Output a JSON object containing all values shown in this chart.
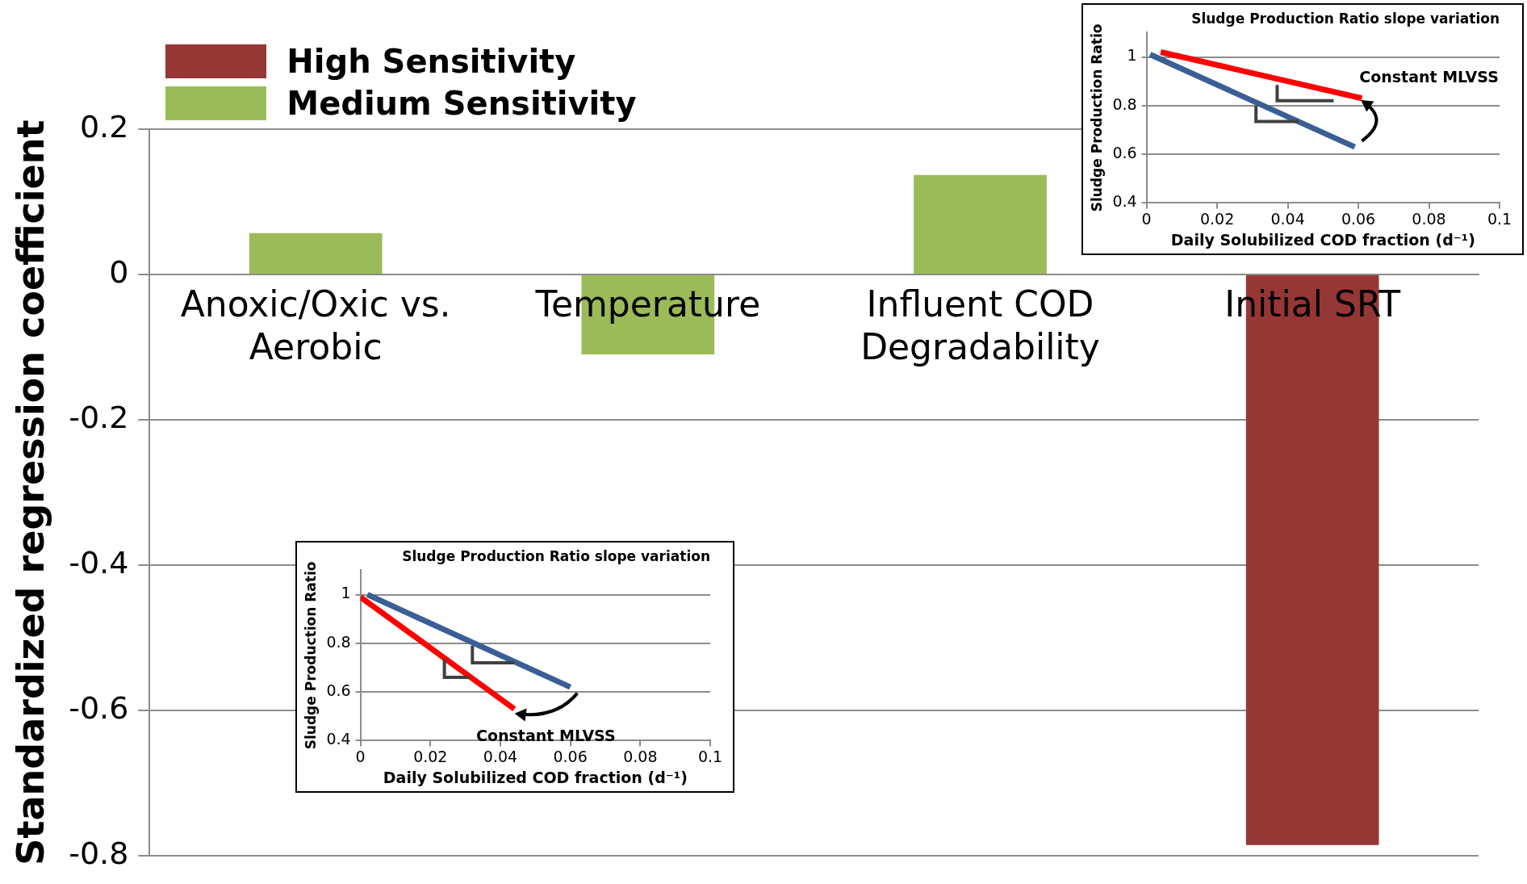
{
  "chart_data": [
    {
      "type": "bar",
      "ylabel": "Standardized regression coefficient",
      "categories": [
        "Anoxic/Oxic vs. Aerobic",
        "Temperature",
        "Influent COD Degradability",
        "Initial SRT"
      ],
      "series": [
        {
          "name": "High Sensitivity",
          "color": "#953735",
          "values": [
            null,
            null,
            null,
            -0.785
          ]
        },
        {
          "name": "Medium Sensitivity",
          "color": "#9bbb59",
          "values": [
            0.057,
            -0.11,
            0.137,
            null
          ]
        }
      ],
      "ylim": [
        -0.8,
        0.2
      ],
      "yticks": [
        -0.8,
        -0.6,
        -0.4,
        -0.2,
        0,
        0.2
      ],
      "grid": "y",
      "legend": "top left"
    },
    {
      "type": "line",
      "title": "Sludge Production Ratio slope variation",
      "xlabel": "Daily Solubilized COD fraction (d⁻¹)",
      "ylabel": "Sludge Production Ratio",
      "series": [
        {
          "color": "#ff0000",
          "x": [
            0.004,
            0.061
          ],
          "values": [
            1.02,
            0.83
          ]
        },
        {
          "color": "#3a5f95",
          "x": [
            0.001,
            0.059
          ],
          "values": [
            1.01,
            0.63
          ]
        }
      ],
      "xlim": [
        0,
        0.1
      ],
      "xticks": [
        0,
        0.02,
        0.04,
        0.06,
        0.08,
        0.1
      ],
      "ylim": [
        0.4,
        1.1
      ],
      "yticks": [
        0.4,
        0.6,
        0.8,
        1
      ],
      "grid": "y",
      "annotations": [
        "Constant MLVSS"
      ]
    },
    {
      "type": "line",
      "title": "Sludge Production Ratio slope variation",
      "xlabel": "Daily Solubilized COD fraction (d⁻¹)",
      "ylabel": "Sludge Production Ratio",
      "series": [
        {
          "color": "#3a5f95",
          "x": [
            0.002,
            0.06
          ],
          "values": [
            1.0,
            0.62
          ]
        },
        {
          "color": "#ff0000",
          "x": [
            0,
            0.044
          ],
          "values": [
            0.99,
            0.53
          ]
        }
      ],
      "xlim": [
        0,
        0.1
      ],
      "xticks": [
        0,
        0.02,
        0.04,
        0.06,
        0.08,
        0.1
      ],
      "ylim": [
        0.4,
        1.1
      ],
      "yticks": [
        0.4,
        0.6,
        0.8,
        1
      ],
      "grid": "y",
      "annotations": [
        "Constant MLVSS"
      ]
    }
  ]
}
